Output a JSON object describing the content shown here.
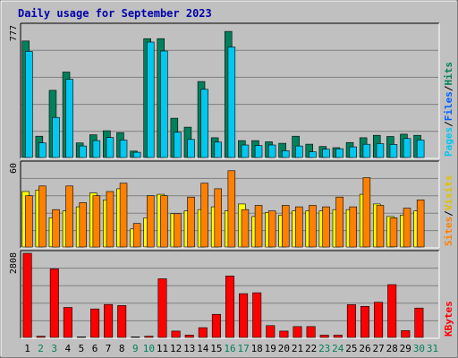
{
  "chart_data": {
    "type": "bar",
    "title": "Daily usage for September 2023",
    "categories": [
      "1",
      "2",
      "3",
      "4",
      "5",
      "6",
      "7",
      "8",
      "9",
      "10",
      "11",
      "12",
      "13",
      "14",
      "15",
      "16",
      "17",
      "18",
      "19",
      "20",
      "21",
      "22",
      "23",
      "24",
      "25",
      "26",
      "27",
      "28",
      "29",
      "30",
      "31"
    ],
    "weekend_days": [
      "2",
      "3",
      "9",
      "10",
      "16",
      "17",
      "23",
      "24",
      "30",
      "31"
    ],
    "panels": [
      {
        "id": "hits-files-pages",
        "ymax_label": "777",
        "ymax": 777,
        "gridlines": true,
        "legend": [
          "Pages",
          "/",
          "Files",
          "/",
          "Hits"
        ],
        "series": [
          {
            "name": "Hits",
            "color": "#00805c",
            "values": [
              688,
              126,
              397,
              505,
              86,
              134,
              158,
              147,
              38,
              702,
              702,
              232,
              179,
              449,
              117,
              745,
              100,
              100,
              93,
              84,
              126,
              79,
              65,
              58,
              89,
              117,
              131,
              124,
              138,
              131,
              0
            ]
          },
          {
            "name": "Files",
            "color": "#00c8f0",
            "values": [
              627,
              86,
              237,
              462,
              68,
              100,
              118,
              103,
              31,
              682,
              629,
              149,
              107,
              403,
              91,
              652,
              74,
              71,
              74,
              40,
              68,
              34,
              49,
              52,
              63,
              78,
              82,
              77,
              112,
              103,
              0
            ]
          },
          {
            "name": "Pages",
            "color": "#00d0d0",
            "values": [
              0,
              0,
              0,
              0,
              0,
              0,
              0,
              0,
              0,
              0,
              0,
              0,
              0,
              0,
              0,
              0,
              0,
              0,
              0,
              0,
              0,
              0,
              0,
              0,
              0,
              0,
              0,
              0,
              0,
              0,
              0
            ]
          }
        ]
      },
      {
        "id": "visits-sites",
        "ymax_label": "60",
        "ymax": 60,
        "gridlines": true,
        "legend": [
          "Sites",
          "/",
          "Visits"
        ],
        "series": [
          {
            "name": "Visits",
            "color": "#ffff00",
            "values": [
              40,
              41,
              21,
              26,
              29,
              39,
              34,
              42,
              13,
              21,
              38,
              24,
              26,
              27,
              29,
              26,
              31,
              22,
              25,
              23,
              26,
              26,
              26,
              27,
              27,
              38,
              31,
              22,
              23,
              26,
              0
            ]
          },
          {
            "name": "Sites",
            "color": "#ff8000",
            "values": [
              37,
              44,
              27,
              44,
              32,
              37,
              40,
              46,
              17,
              37,
              37,
              24,
              36,
              46,
              42,
              55,
              27,
              30,
              26,
              30,
              29,
              30,
              29,
              36,
              29,
              50,
              30,
              21,
              28,
              34,
              0
            ]
          }
        ]
      },
      {
        "id": "kbytes",
        "ymax_label": "2808",
        "ymax": 2808,
        "gridlines": true,
        "legend": [
          "KBytes"
        ],
        "series": [
          {
            "name": "KBytes",
            "color": "#ff0000",
            "values": [
              2808,
              38,
              2287,
              1001,
              19,
              950,
              1099,
              1062,
              19,
              38,
              1958,
              211,
              77,
              325,
              771,
              2048,
              1461,
              1491,
              393,
              211,
              362,
              362,
              76,
              76,
              1092,
              1038,
              1174,
              1762,
              227,
              980,
              0
            ]
          }
        ]
      }
    ]
  }
}
